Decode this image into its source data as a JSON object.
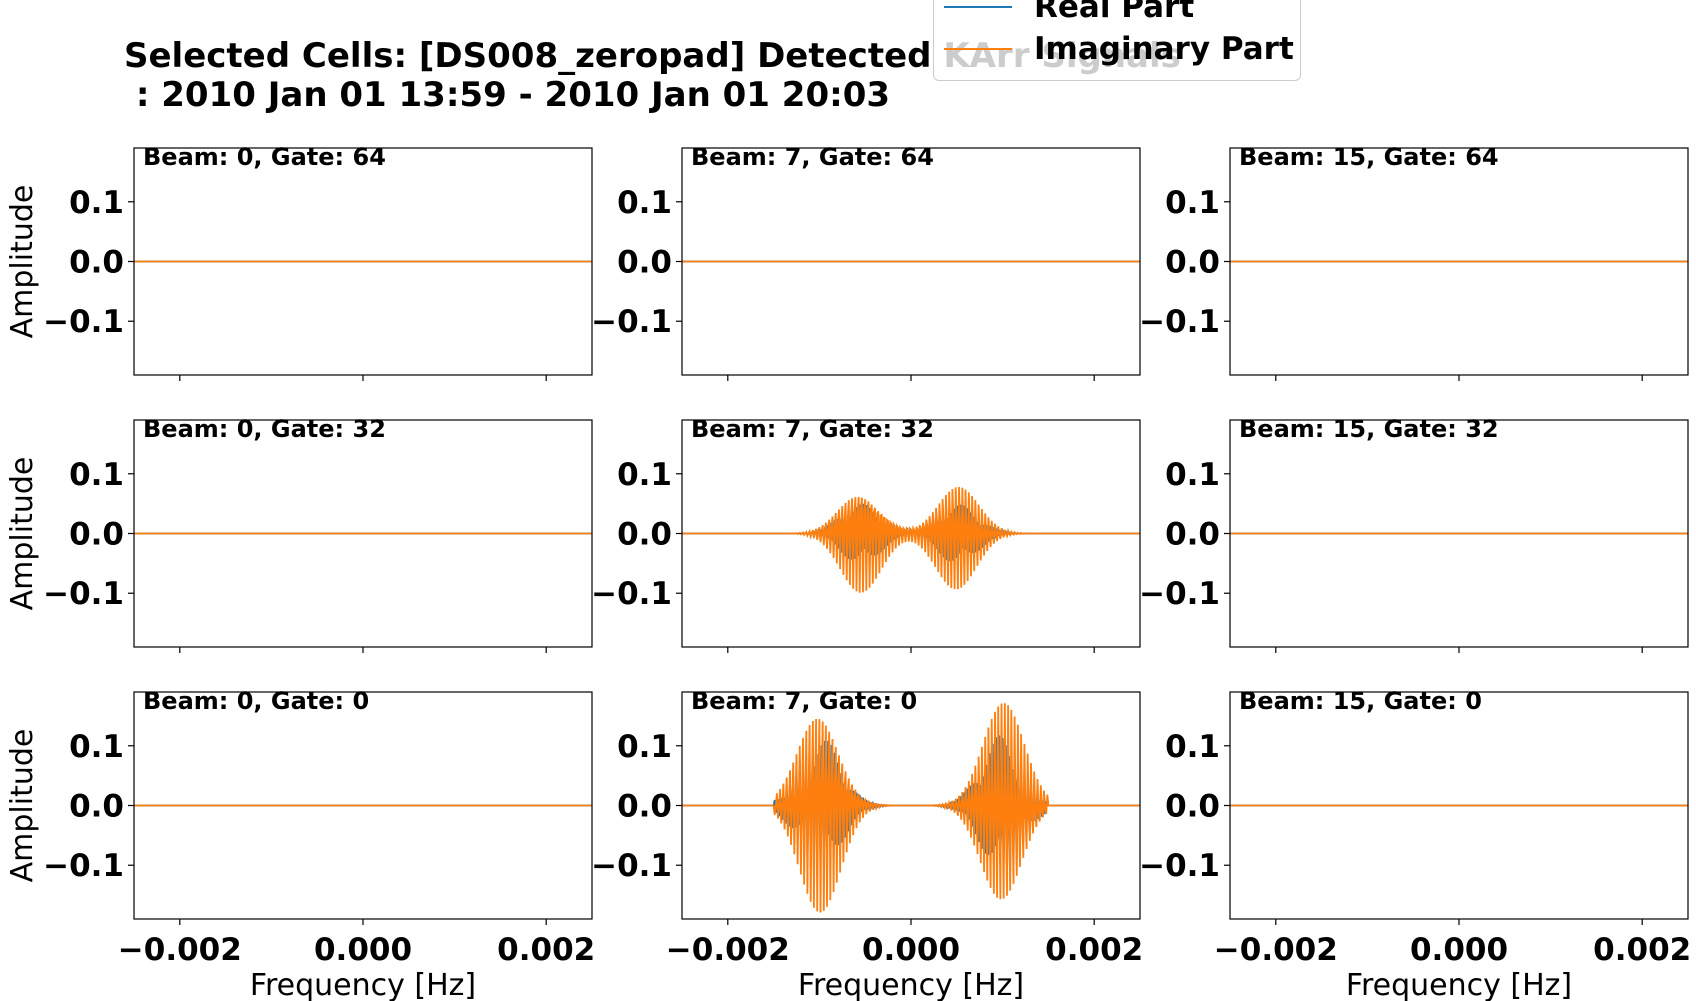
{
  "title": {
    "line1": "Selected Cells: [DS008_zeropad] Detected KArr Signals",
    "line2": " : 2010 Jan 01 13:59 - 2010 Jan 01 20:03"
  },
  "legend": [
    {
      "label": "Real Part",
      "color": "#1f77b4"
    },
    {
      "label": "Imaginary Part",
      "color": "#ff7f0e"
    }
  ],
  "chart_data": {
    "type": "line",
    "layout": {
      "rows": 3,
      "cols": 3
    },
    "xlabel": "Frequency [Hz]",
    "ylabel": "Amplitude",
    "xlim": [
      -0.0025,
      0.0025
    ],
    "ylim": [
      -0.19,
      0.19
    ],
    "xticks": [
      -0.002,
      0.0,
      0.002
    ],
    "xtick_labels": [
      "−0.002",
      "0.000",
      "0.002"
    ],
    "yticks": [
      0.1,
      0.0,
      -0.1
    ],
    "ytick_labels": [
      "0.1",
      "0.0",
      "−0.1"
    ],
    "grid": false,
    "panels": [
      {
        "label": "Beam: 0, Gate: 64",
        "signal": false
      },
      {
        "label": "Beam: 7, Gate: 64",
        "signal": false
      },
      {
        "label": "Beam: 15, Gate: 64",
        "signal": false
      },
      {
        "label": "Beam: 0, Gate: 32",
        "signal": false
      },
      {
        "label": "Beam: 7, Gate: 32",
        "signal": true,
        "envelope": {
          "peaks_hz": [
            -0.00055,
            0.0005
          ],
          "imag_peak": 0.1,
          "real_peak": 0.05,
          "support_hz": [
            -0.0015,
            0.0015
          ]
        }
      },
      {
        "label": "Beam: 15, Gate: 32",
        "signal": false
      },
      {
        "label": "Beam: 0, Gate: 0",
        "signal": false
      },
      {
        "label": "Beam: 7, Gate: 0",
        "signal": true,
        "envelope": {
          "peaks_hz": [
            -0.001,
            0.001
          ],
          "imag_peak": 0.19,
          "real_peak": 0.12,
          "support_hz": [
            -0.0015,
            0.0015
          ]
        }
      },
      {
        "label": "Beam: 15, Gate: 0",
        "signal": false
      }
    ]
  }
}
